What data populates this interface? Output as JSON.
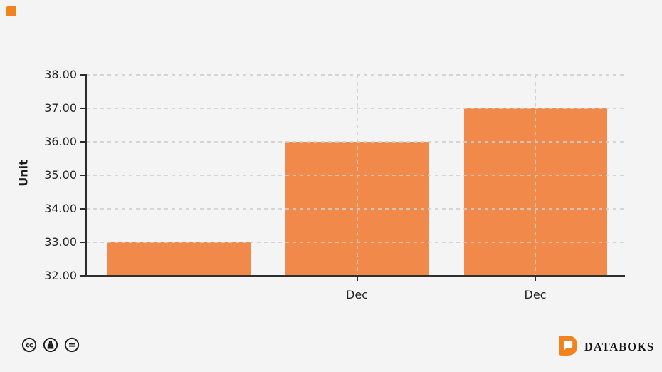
{
  "page": {
    "background_color": "#f4f4f5",
    "accent_color": "#f28120"
  },
  "chart_data": {
    "type": "bar",
    "title": "",
    "categories": [
      "",
      "Dec",
      "Dec"
    ],
    "values": [
      33,
      36,
      37
    ],
    "series_color": "#f0894a",
    "xlabel": "",
    "ylabel": "Unit",
    "ylim": [
      32,
      38
    ],
    "ytick_interval": 1,
    "ytick_labels": [
      "38.00",
      "37.00",
      "36.00",
      "35.00",
      "34.00",
      "33.00",
      "32.00"
    ],
    "grid": {
      "horizontal": "dashed",
      "vertical": "dashed, only at labeled categories",
      "color": "#d0d0d0"
    },
    "legend": "none"
  },
  "footer": {
    "license": {
      "icons": [
        {
          "name": "cc-icon",
          "glyph": "cc"
        },
        {
          "name": "attribution-icon",
          "glyph": "person"
        },
        {
          "name": "no-derivatives-icon",
          "glyph": "equals"
        }
      ]
    },
    "brand": {
      "logo_letter": "D",
      "wordmark": "DATABOKS",
      "logo_color": "#f28120",
      "text_color": "#161616"
    }
  },
  "decor": {
    "corner_square_color": "#f28120"
  }
}
